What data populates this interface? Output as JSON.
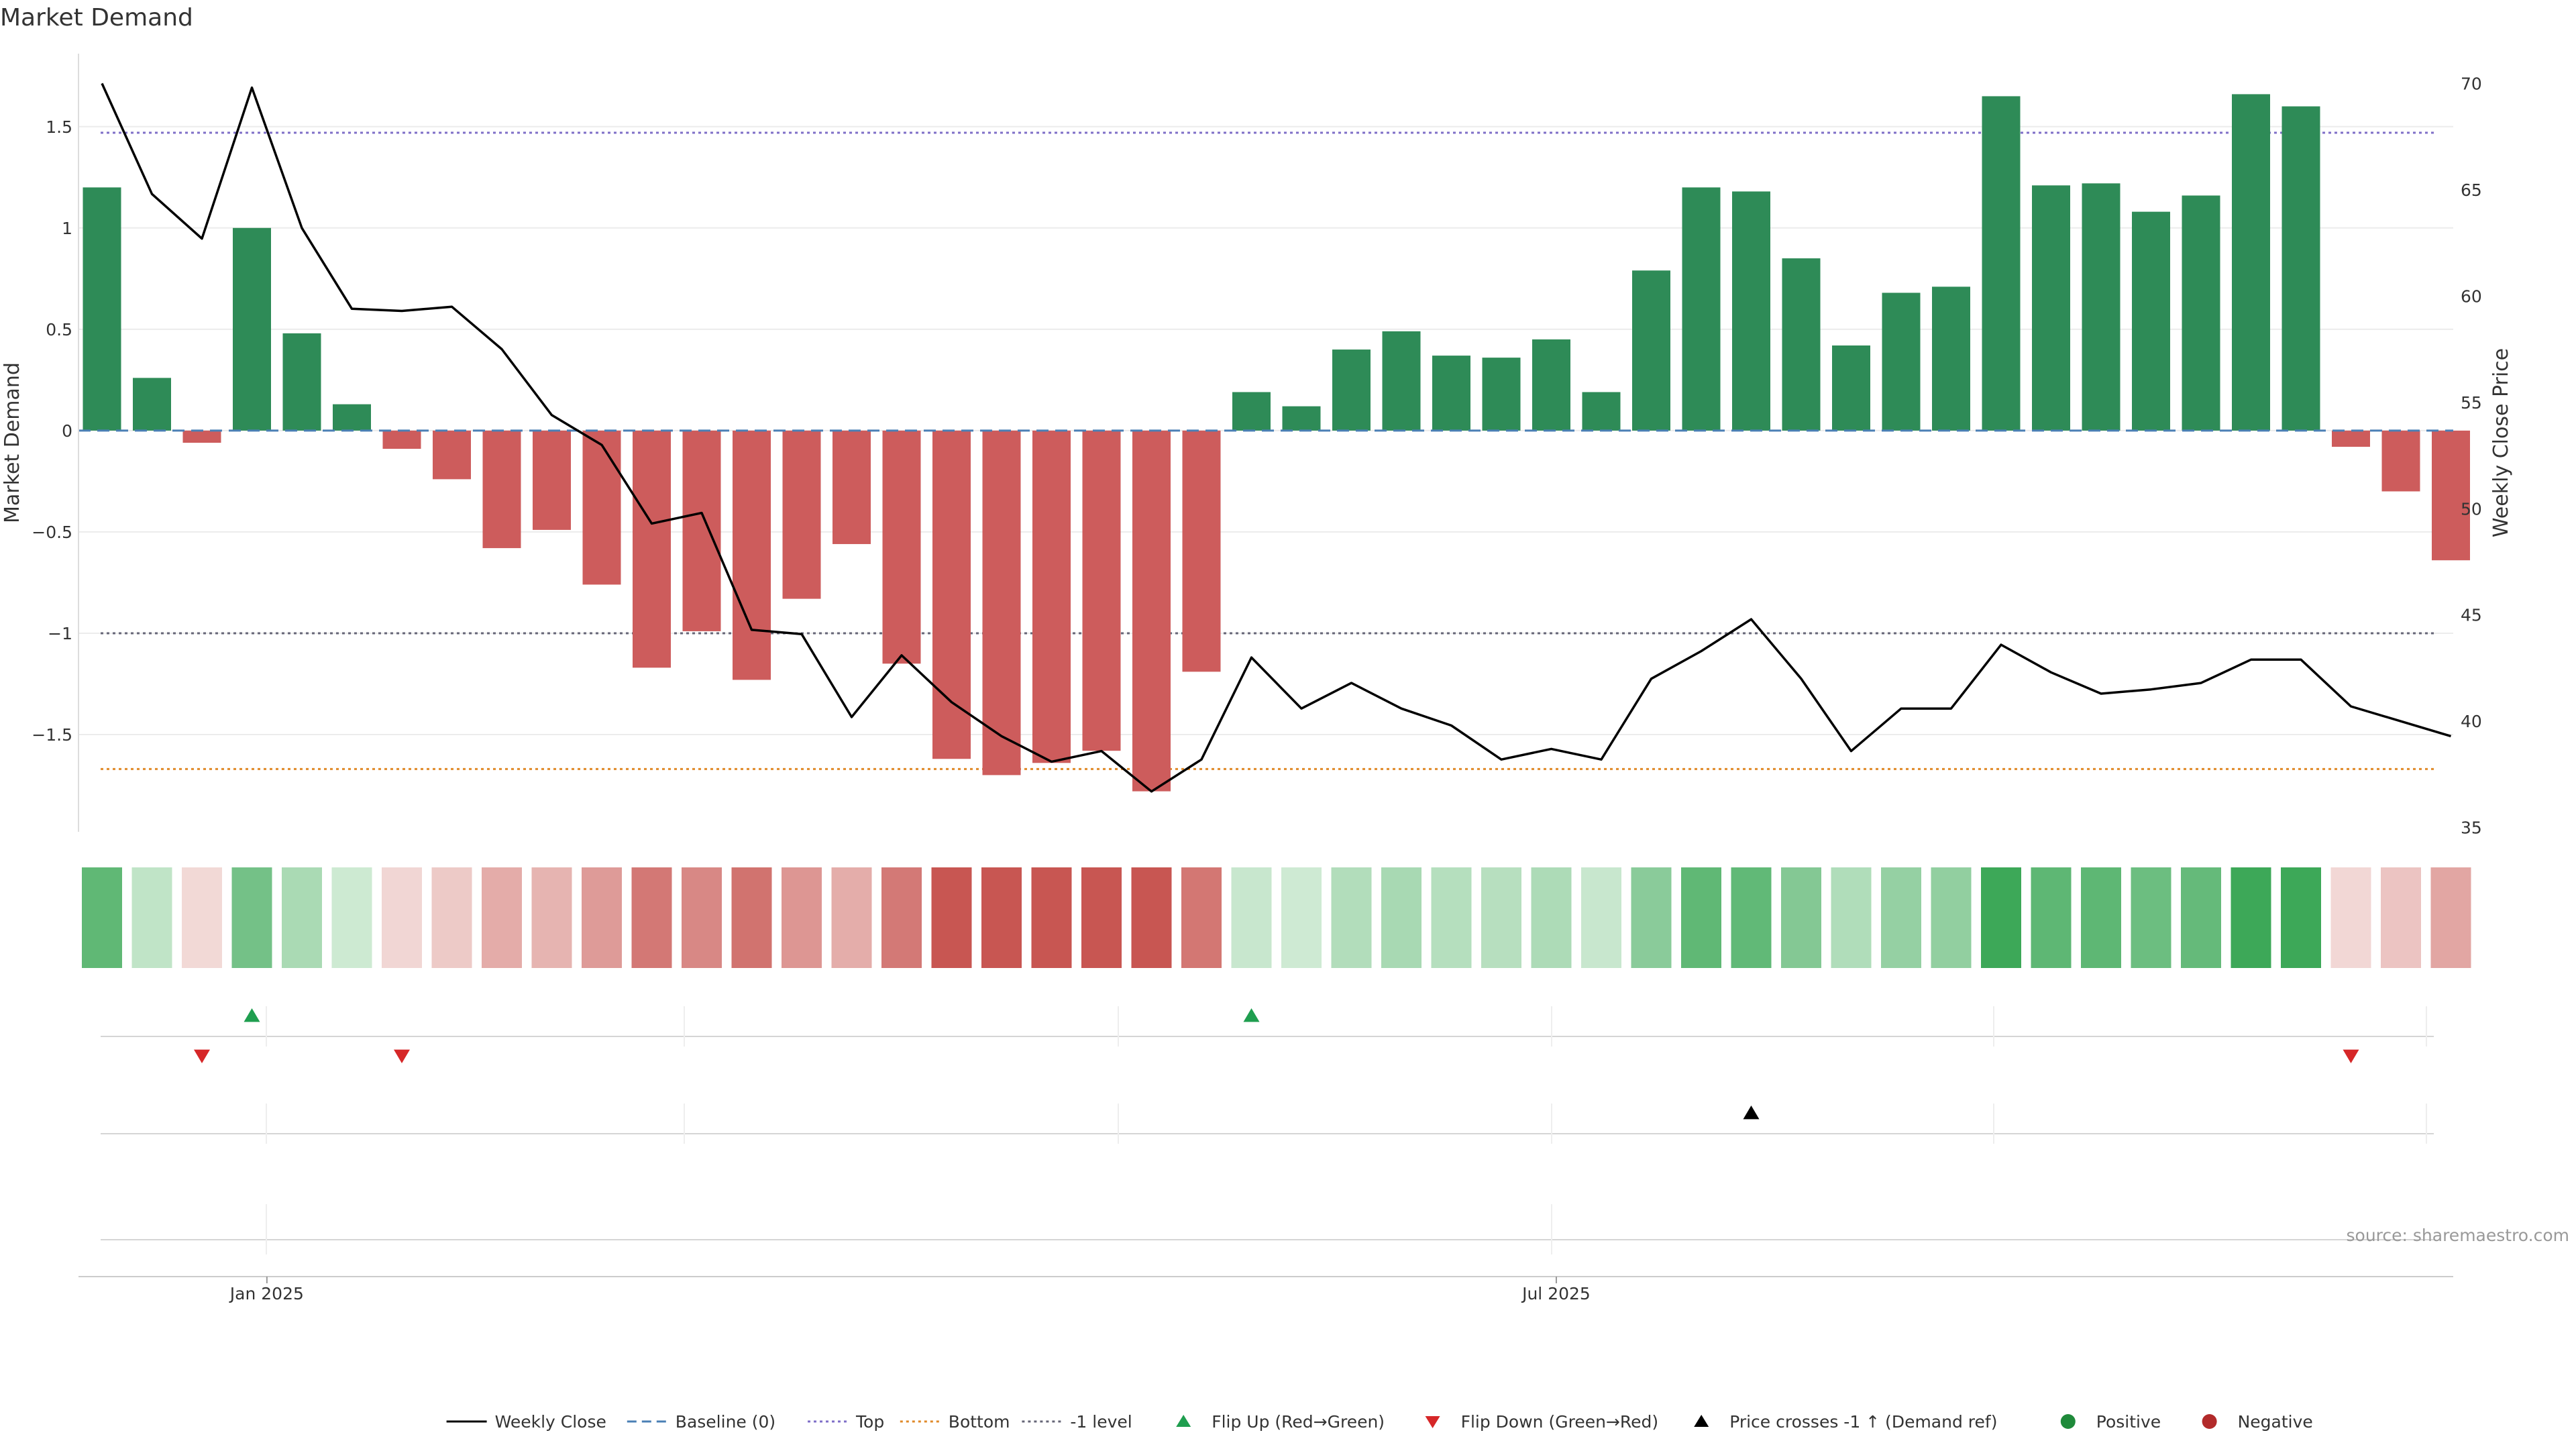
{
  "chart_data": {
    "type": "bar",
    "title": "Market Demand",
    "ylabel_left": "Market Demand",
    "ylabel_right": "Weekly Close Price",
    "left_ylim": [
      -1.98,
      1.86
    ],
    "right_ylim": [
      34.8,
      71.4
    ],
    "left_ticks": [
      1.5,
      1,
      0.5,
      0,
      -0.5,
      -1,
      -1.5
    ],
    "left_tick_labels": [
      "1.5",
      "1",
      "0.5",
      "0",
      "−0.5",
      "−1",
      "−1.5"
    ],
    "right_ticks": [
      70,
      65,
      60,
      55,
      50,
      45,
      40,
      35
    ],
    "right_tick_labels": [
      "70",
      "65",
      "60",
      "55",
      "50",
      "45",
      "40",
      "35"
    ],
    "x_tick_labels": [
      {
        "label": "Jan 2025",
        "week": 3.3
      },
      {
        "label": "Jul 2025",
        "week": 29.1
      }
    ],
    "reference_lines": {
      "baseline": 0,
      "top": 1.47,
      "bottom": -1.67,
      "minus_one": -1.0
    },
    "weeks": 48,
    "series": [
      {
        "name": "Market Demand",
        "type": "bar",
        "values": [
          1.2,
          0.26,
          -0.06,
          1.0,
          0.48,
          0.13,
          -0.09,
          -0.24,
          -0.58,
          -0.49,
          -0.76,
          -1.17,
          -0.99,
          -1.23,
          -0.83,
          -0.56,
          -1.15,
          -1.62,
          -1.7,
          -1.64,
          -1.58,
          -1.78,
          -1.19,
          0.19,
          0.12,
          0.4,
          0.49,
          0.37,
          0.36,
          0.45,
          0.19,
          0.79,
          1.2,
          1.18,
          0.85,
          0.42,
          0.68,
          0.71,
          1.65,
          1.21,
          1.22,
          1.08,
          1.16,
          1.66,
          1.6,
          -0.08,
          -0.3,
          -0.64
        ]
      },
      {
        "name": "Weekly Close",
        "type": "line",
        "values": [
          70.0,
          64.8,
          62.7,
          69.8,
          63.2,
          59.4,
          59.3,
          59.5,
          57.5,
          54.4,
          53.0,
          49.3,
          49.8,
          44.3,
          44.1,
          40.2,
          43.1,
          40.9,
          39.3,
          38.1,
          38.6,
          36.7,
          38.2,
          43.0,
          40.6,
          41.8,
          40.6,
          39.8,
          38.2,
          38.7,
          38.2,
          42.0,
          43.3,
          44.8,
          42.0,
          38.6,
          40.6,
          40.6,
          43.6,
          42.3,
          41.3,
          41.5,
          41.8,
          42.9,
          42.9,
          40.7,
          40.0,
          39.3
        ]
      }
    ],
    "heat_strip": [
      0.78,
      0.17,
      -0.04,
      0.65,
      0.31,
      0.09,
      -0.06,
      -0.15,
      -0.37,
      -0.31,
      -0.49,
      -0.75,
      -0.63,
      -0.79,
      -0.53,
      -0.36,
      -0.74,
      -1.0,
      -1.0,
      -1.0,
      -1.0,
      -1.0,
      -0.76,
      0.12,
      0.08,
      0.26,
      0.32,
      0.24,
      0.23,
      0.29,
      0.12,
      0.51,
      0.78,
      0.77,
      0.55,
      0.27,
      0.44,
      0.46,
      1.0,
      0.79,
      0.79,
      0.7,
      0.75,
      1.0,
      1.0,
      -0.05,
      -0.19,
      -0.41
    ],
    "events": {
      "flip_up_weeks": [
        3,
        23
      ],
      "flip_down_weeks": [
        2,
        6,
        45
      ],
      "price_cross_weeks": [
        33
      ]
    },
    "legend": [
      {
        "label": "Weekly Close",
        "kind": "line-solid",
        "color": "#000000"
      },
      {
        "label": "Baseline (0)",
        "kind": "line-dash",
        "color": "#4a7fb5"
      },
      {
        "label": "Top",
        "kind": "line-dot",
        "color": "#7f6fc8"
      },
      {
        "label": "Bottom",
        "kind": "line-dot",
        "color": "#e08a2a"
      },
      {
        "label": "-1 level",
        "kind": "line-dot",
        "color": "#666677"
      },
      {
        "label": "Flip Up (Red→Green)",
        "kind": "tri-up",
        "color": "#1f9e4f"
      },
      {
        "label": "Flip Down (Green→Red)",
        "kind": "tri-down",
        "color": "#d62728"
      },
      {
        "label": "Price crosses -1 ↑ (Demand ref)",
        "kind": "tri-up",
        "color": "#000000"
      },
      {
        "label": "Positive",
        "kind": "dot",
        "color": "#1f8a3a"
      },
      {
        "label": "Negative",
        "kind": "dot",
        "color": "#b22a2a"
      }
    ],
    "source": "source: sharemaestro.com"
  },
  "colors": {
    "positive_bar": "#2e8b57",
    "negative_bar": "#cd5c5c",
    "price_line": "#000000"
  }
}
